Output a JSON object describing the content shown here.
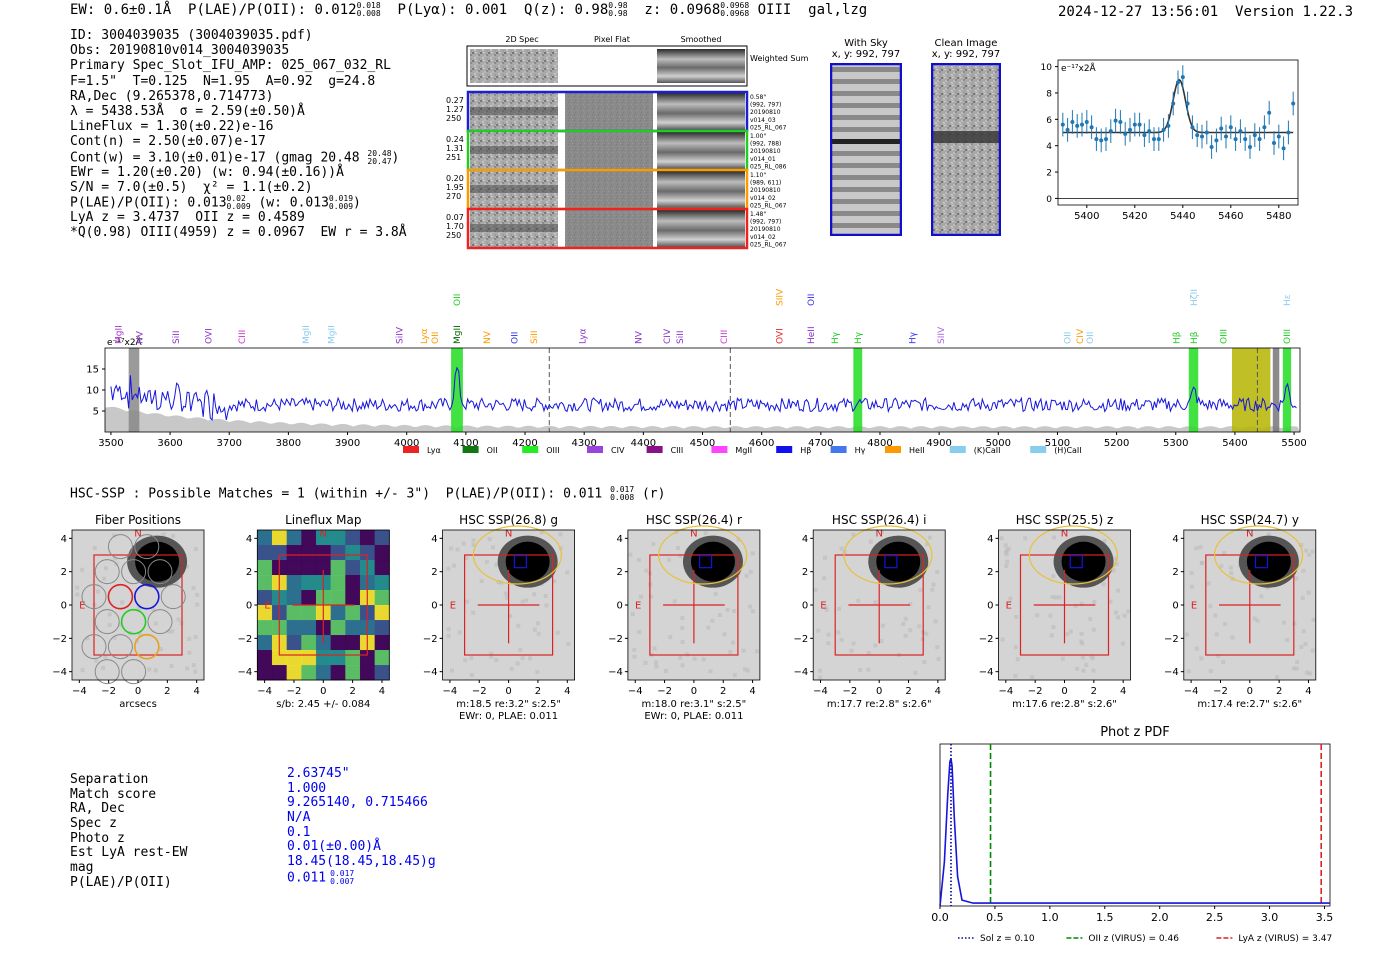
{
  "header": {
    "ew": "EW: 0.6±0.1Å",
    "plae_label": "P(LAE)/P(OII): 0.012",
    "plae_sup": "0.018",
    "plae_sub": "0.008",
    "plya": "P(Lyα): 0.001",
    "qz_label": "Q(z): 0.98",
    "qz_sup": "0.98",
    "qz_sub": "0.98",
    "z_label": "z: 0.0968",
    "z_sup": "0.0968",
    "z_sub": "0.0968",
    "z_tail": "OIII  gal,lzg",
    "timestamp": "2024-12-27 13:56:01",
    "version": "Version 1.22.3"
  },
  "info": {
    "id": "ID: 3004039035 (3004039035.pdf)",
    "obs": "Obs: 20190810v014_3004039035",
    "primary": "Primary Spec_Slot_IFU_AMP: 025_067_032_RL",
    "fit": "F=1.5\"  T=0.125  N=1.95  A=0.92  g=24.8",
    "radec": "RA,Dec (9.265378,0.714773)",
    "lambda": "λ = 5438.53Å  σ = 2.59(±0.50)Å",
    "lineflux": "LineFlux = 1.30(±0.22)e-16",
    "contn": "Cont(n) = 2.50(±0.07)e-17",
    "contw": "Cont(w) = 3.10(±0.01)e-17 (gmag 20.48",
    "contw_sup": "20.48",
    "contw_sub": "20.47",
    "ewr": "EWr = 1.20(±0.20) (w: 0.94(±0.16))Å",
    "sn": "S/N = 7.0(±0.5)  χ² = 1.1(±0.2)",
    "plae": "P(LAE)/P(OII): 0.013",
    "plae_sup": "0.02",
    "plae_sub": "0.009",
    "plae_w": "(w: 0.013",
    "plae_w_sup": "0.019",
    "plae_w_sub": "0.009",
    "lya": "LyA z = 3.4737  OII z = 0.4589",
    "q": "*Q(0.98) OIII(4959) z = 0.0967  EW r = 3.8Å"
  },
  "cutouts": {
    "col_2d": "2D Spec",
    "col_flat": "Pixel Flat",
    "col_smooth": "Smoothed",
    "weighted": "Weighted Sum",
    "fibers": [
      {
        "left": [
          "0.27",
          "1.27",
          "250"
        ],
        "right": [
          "0.58\"",
          "(992, 797)",
          "20190810",
          "v014_03",
          "025_RL_067"
        ],
        "color": "#1f1fd0"
      },
      {
        "left": [
          "0.24",
          "1.31",
          "251"
        ],
        "right": [
          "1.00\"",
          "(992, 788)",
          "20190810",
          "v014_01",
          "025_RL_086"
        ],
        "color": "#22cc22"
      },
      {
        "left": [
          "0.20",
          "1.95",
          "270"
        ],
        "right": [
          "1.10\"",
          "(989, 611)",
          "20190810",
          "v014_02",
          "025_RL_067"
        ],
        "color": "#ff9900"
      },
      {
        "left": [
          "0.07",
          "1.70",
          "250"
        ],
        "right": [
          "1.48\"",
          "(992, 797)",
          "20190810",
          "v014_02",
          "025_RL_067"
        ],
        "color": "#ee2222"
      }
    ],
    "with_sky_title": "With Sky",
    "with_sky_xy": "x, y: 992, 797",
    "clean_title": "Clean Image",
    "clean_xy": "x, y: 992, 797"
  },
  "chart_data": [
    {
      "type": "line",
      "id": "zoom-fit",
      "ylabel": "e⁻¹⁷x2Å",
      "xlim": [
        5388,
        5488
      ],
      "ylim": [
        -0.5,
        10.5
      ],
      "xticks": [
        5400,
        5420,
        5440,
        5460,
        5480
      ],
      "yticks": [
        0,
        2,
        4,
        6,
        8,
        10
      ],
      "data_x": [
        5390,
        5392,
        5394,
        5396,
        5398,
        5400,
        5402,
        5404,
        5406,
        5408,
        5410,
        5412,
        5414,
        5416,
        5418,
        5420,
        5422,
        5424,
        5426,
        5428,
        5430,
        5432,
        5434,
        5436,
        5438,
        5440,
        5442,
        5444,
        5446,
        5448,
        5450,
        5452,
        5454,
        5456,
        5458,
        5460,
        5462,
        5464,
        5466,
        5468,
        5470,
        5472,
        5474,
        5476,
        5478,
        5480,
        5482,
        5484,
        5486
      ],
      "data_y": [
        5.6,
        5.2,
        5.8,
        5.5,
        5.6,
        5.8,
        5.4,
        4.5,
        4.4,
        4.5,
        5.1,
        5.9,
        5.8,
        4.9,
        5.2,
        5.6,
        5.6,
        4.8,
        5.1,
        4.5,
        4.5,
        5.2,
        5.5,
        7.2,
        8.8,
        9.2,
        7.2,
        5.4,
        4.8,
        4.7,
        5.0,
        3.9,
        4.4,
        5.3,
        4.7,
        5.4,
        4.5,
        5.1,
        4.5,
        3.9,
        4.8,
        4.5,
        5.4,
        6.5,
        4.2,
        4.7,
        3.8,
        5.0,
        7.2
      ],
      "error": 0.9,
      "model": {
        "continuum": 5.0,
        "center": 5438.53,
        "sigma": 2.59,
        "amplitude": 4.0
      }
    },
    {
      "type": "line",
      "id": "full-spectrum",
      "ylabel": "e⁻¹⁷x2Å",
      "xlim": [
        3490,
        5510
      ],
      "ylim": [
        0,
        20
      ],
      "xticks": [
        3500,
        3600,
        3700,
        3800,
        3900,
        4000,
        4100,
        4200,
        4300,
        4400,
        4500,
        4600,
        4700,
        4800,
        4900,
        5000,
        5100,
        5200,
        5300,
        5400,
        5500
      ],
      "yticks": [
        5,
        10,
        15
      ],
      "emission_peaks": [
        {
          "x": 4085,
          "y": 15
        },
        {
          "x": 4763,
          "y": 7
        },
        {
          "x": 5331,
          "y": 10
        },
        {
          "x": 5488,
          "y": 11
        }
      ],
      "continuum_y": 6.5,
      "highlight_bands": [
        {
          "x0": 4075,
          "x1": 4095,
          "color": "#22dd22"
        },
        {
          "x0": 4755,
          "x1": 4770,
          "color": "#22dd22"
        },
        {
          "x0": 5322,
          "x1": 5338,
          "color": "#22dd22"
        },
        {
          "x0": 5481,
          "x1": 5495,
          "color": "#22dd22"
        },
        {
          "x0": 5395,
          "x1": 5460,
          "color": "#b5b500"
        },
        {
          "x0": 5464,
          "x1": 5475,
          "color": "#777777"
        },
        {
          "x0": 3530,
          "x1": 3548,
          "color": "#888888"
        }
      ],
      "dashed_lines": [
        4241,
        4547,
        5438
      ],
      "line_labels": [
        {
          "x": 3513,
          "label": "MgII",
          "color": "#aa33cc",
          "row": 0
        },
        {
          "x": 3548,
          "label": "NV",
          "color": "#8833cc",
          "row": 0
        },
        {
          "x": 3610,
          "label": "SiII",
          "color": "#8833cc",
          "row": 0
        },
        {
          "x": 3665,
          "label": "OVI",
          "color": "#8833cc",
          "row": 0
        },
        {
          "x": 3722,
          "label": "CIII",
          "color": "#cc33cc",
          "row": 0
        },
        {
          "x": 3830,
          "label": "MgII",
          "color": "#88ccee",
          "row": 0
        },
        {
          "x": 3873,
          "label": "MgII",
          "color": "#88ccee",
          "row": 0
        },
        {
          "x": 3988,
          "label": "SiIV",
          "color": "#8833cc",
          "row": 0
        },
        {
          "x": 4029,
          "label": "Lyα",
          "color": "#ff9900",
          "row": 0
        },
        {
          "x": 4048,
          "label": "OII",
          "color": "#ff9900",
          "row": 0
        },
        {
          "x": 4085,
          "label": "MgII",
          "color": "#006600",
          "row": 0
        },
        {
          "x": 4085,
          "label": "OII",
          "color": "#22cc22",
          "row": 1
        },
        {
          "x": 4136,
          "label": "NV",
          "color": "#ff9900",
          "row": 0
        },
        {
          "x": 4182,
          "label": "OII",
          "color": "#3333ee",
          "row": 0
        },
        {
          "x": 4215,
          "label": "SiII",
          "color": "#ff9900",
          "row": 0
        },
        {
          "x": 4297,
          "label": "Lyα",
          "color": "#8833cc",
          "row": 0
        },
        {
          "x": 4392,
          "label": "NV",
          "color": "#8833cc",
          "row": 0
        },
        {
          "x": 4440,
          "label": "CIV",
          "color": "#8833cc",
          "row": 0
        },
        {
          "x": 4462,
          "label": "SiII",
          "color": "#8833cc",
          "row": 0
        },
        {
          "x": 4536,
          "label": "CIII",
          "color": "#cc33cc",
          "row": 0
        },
        {
          "x": 4630,
          "label": "OVI",
          "color": "#ee2222",
          "row": 0
        },
        {
          "x": 4630,
          "label": "SIIV",
          "color": "#ff9900",
          "row": 1
        },
        {
          "x": 4683,
          "label": "HeII",
          "color": "#8833cc",
          "row": 0
        },
        {
          "x": 4683,
          "label": "OII",
          "color": "#3333ee",
          "row": 1
        },
        {
          "x": 4724,
          "label": "Hγ",
          "color": "#22cc22",
          "row": 0
        },
        {
          "x": 4763,
          "label": "Hγ",
          "color": "#22cc22",
          "row": 0
        },
        {
          "x": 4855,
          "label": "Hγ",
          "color": "#3333ee",
          "row": 0
        },
        {
          "x": 4903,
          "label": "SIIV",
          "color": "#aa66dd",
          "row": 0
        },
        {
          "x": 5117,
          "label": "OII",
          "color": "#88ccee",
          "row": 0
        },
        {
          "x": 5138,
          "label": "CIV",
          "color": "#ff9900",
          "row": 0
        },
        {
          "x": 5155,
          "label": "OII",
          "color": "#88ccee",
          "row": 0
        },
        {
          "x": 5301,
          "label": "Hβ",
          "color": "#22cc22",
          "row": 0
        },
        {
          "x": 5331,
          "label": "Hβ",
          "color": "#22cc22",
          "row": 0
        },
        {
          "x": 5331,
          "label": "HζII",
          "color": "#88ccee",
          "row": 1
        },
        {
          "x": 5381,
          "label": "OIII",
          "color": "#22cc22",
          "row": 0
        },
        {
          "x": 5488,
          "label": "OIII",
          "color": "#22cc22",
          "row": 0
        },
        {
          "x": 5488,
          "label": "Hε",
          "color": "#88ccee",
          "row": 1
        }
      ],
      "legend": [
        {
          "label": "Lyα",
          "color": "#ee2222"
        },
        {
          "label": "OII",
          "color": "#117711"
        },
        {
          "label": "OIII",
          "color": "#22ee22"
        },
        {
          "label": "CIV",
          "color": "#9944dd"
        },
        {
          "label": "CIII",
          "color": "#881188"
        },
        {
          "label": "MgII",
          "color": "#ff44ff"
        },
        {
          "label": "Hβ",
          "color": "#1111ee"
        },
        {
          "label": "Hγ",
          "color": "#4477ee"
        },
        {
          "label": "HeII",
          "color": "#ff9900"
        },
        {
          "label": "(K)CaII",
          "color": "#88ccee"
        },
        {
          "label": "(H)CaII",
          "color": "#88ccee"
        }
      ]
    },
    {
      "type": "line",
      "id": "photz-pdf",
      "title": "Phot z PDF",
      "xlim": [
        0,
        3.55
      ],
      "ylim": [
        0,
        1.1
      ],
      "xticks": [
        0.0,
        0.5,
        1.0,
        1.5,
        2.0,
        2.5,
        3.0,
        3.5
      ],
      "pdf_x": [
        0,
        0.04,
        0.07,
        0.09,
        0.1,
        0.11,
        0.13,
        0.16,
        0.2,
        0.3,
        0.5,
        1.0,
        2.0,
        3.0,
        3.55
      ],
      "pdf_y": [
        0.0,
        0.3,
        0.75,
        0.98,
        1.0,
        0.95,
        0.6,
        0.2,
        0.04,
        0.02,
        0.02,
        0.02,
        0.02,
        0.02,
        0.02
      ],
      "vlines": [
        {
          "x": 0.1,
          "label": "Sol z = 0.10",
          "color": "#0000aa",
          "style": "dotted"
        },
        {
          "x": 0.46,
          "label": "OII z (VIRUS) = 0.46",
          "color": "#008800",
          "style": "dashed"
        },
        {
          "x": 3.47,
          "label": "LyA z (VIRUS) = 3.47",
          "color": "#dd2222",
          "style": "dashed"
        }
      ]
    }
  ],
  "hsc": {
    "title": "HSC-SSP : Possible Matches = 1 (within +/- 3\")",
    "plae_label": "P(LAE)/P(OII): 0.011",
    "plae_sup": "0.017",
    "plae_sub": "0.008",
    "plae_band": "(r)",
    "compass_n": "N",
    "compass_e": "E",
    "axis_ticks": [
      -4,
      -2,
      0,
      2,
      4
    ],
    "panels": [
      {
        "title": "Fiber Positions",
        "cap1": "arcsecs",
        "cap2": "",
        "kind": "fibers"
      },
      {
        "title": "Lineflux Map",
        "cap1": "s/b: 2.45 +/- 0.084",
        "cap2": "",
        "kind": "lineflux"
      },
      {
        "title": "HSC SSP(26.8) g",
        "cap1": "m:18.5  re:3.2\"  s:2.5\"",
        "cap2": "EWr: 0, PLAE: 0.011",
        "kind": "hsc"
      },
      {
        "title": "HSC SSP(26.4) r",
        "cap1": "m:18.0  re:3.1\"  s:2.5\"",
        "cap2": "EWr: 0, PLAE: 0.011",
        "kind": "hsc"
      },
      {
        "title": "HSC SSP(26.4) i",
        "cap1": "m:17.7  re:2.8\"  s:2.6\"",
        "cap2": "",
        "kind": "hsc"
      },
      {
        "title": "HSC SSP(25.5) z",
        "cap1": "m:17.6  re:2.8\"  s:2.6\"",
        "cap2": "",
        "kind": "hsc"
      },
      {
        "title": "HSC SSP(24.7) y",
        "cap1": "m:17.4  re:2.7\"  s:2.6\"",
        "cap2": "",
        "kind": "hsc"
      }
    ]
  },
  "match": {
    "labels": [
      "Separation",
      "Match score",
      "RA, Dec",
      "Spec z",
      "Photo z",
      "Est LyA rest-EW",
      "mag",
      "P(LAE)/P(OII)"
    ],
    "values": [
      "2.63745\"",
      "1.000",
      "9.265140, 0.715466",
      "N/A",
      "0.1",
      "0.01(±0.00)Å",
      "18.45(18.45,18.45)g",
      "0.011"
    ],
    "plae_sup": "0.017",
    "plae_sub": "0.007"
  }
}
